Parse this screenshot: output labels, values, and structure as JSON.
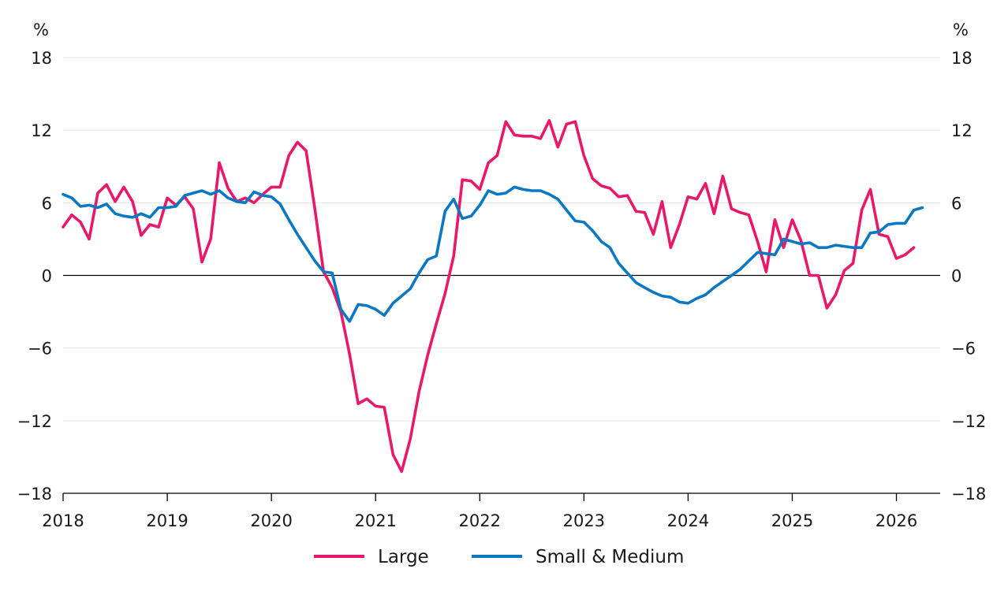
{
  "chart_data": {
    "type": "line",
    "y_unit_left": "%",
    "y_unit_right": "%",
    "ylim": [
      -18,
      18
    ],
    "yticks": [
      18,
      12,
      6,
      0,
      -6,
      -12,
      -18
    ],
    "ytick_labels": [
      "18",
      "12",
      "6",
      "0",
      "−6",
      "−12",
      "−18"
    ],
    "xlim": [
      2018,
      2026.42
    ],
    "xticks": [
      2018,
      2019,
      2020,
      2021,
      2022,
      2023,
      2024,
      2025,
      2026
    ],
    "xtick_labels": [
      "2018",
      "2019",
      "2020",
      "2021",
      "2022",
      "2023",
      "2024",
      "2025",
      "2026"
    ],
    "grid": true,
    "legend_position": "bottom-center",
    "series": [
      {
        "name": "Large",
        "color": "#e8196b",
        "x": [
          2018.0,
          2018.083,
          2018.167,
          2018.25,
          2018.333,
          2018.417,
          2018.5,
          2018.583,
          2018.667,
          2018.75,
          2018.833,
          2018.917,
          2019.0,
          2019.083,
          2019.167,
          2019.25,
          2019.333,
          2019.417,
          2019.5,
          2019.583,
          2019.667,
          2019.75,
          2019.833,
          2019.917,
          2020.0,
          2020.083,
          2020.167,
          2020.25,
          2020.333,
          2020.417,
          2020.5,
          2020.583,
          2020.667,
          2020.75,
          2020.833,
          2020.917,
          2021.0,
          2021.083,
          2021.167,
          2021.25,
          2021.333,
          2021.417,
          2021.5,
          2021.583,
          2021.667,
          2021.75,
          2021.833,
          2021.917,
          2022.0,
          2022.083,
          2022.167,
          2022.25,
          2022.333,
          2022.417,
          2022.5,
          2022.583,
          2022.667,
          2022.75,
          2022.833,
          2022.917,
          2023.0,
          2023.083,
          2023.167,
          2023.25,
          2023.333,
          2023.417,
          2023.5,
          2023.583,
          2023.667,
          2023.75,
          2023.833,
          2023.917,
          2024.0,
          2024.083,
          2024.167,
          2024.25,
          2024.333,
          2024.417,
          2024.5,
          2024.583,
          2024.667,
          2024.75,
          2024.833,
          2024.917,
          2025.0,
          2025.083,
          2025.167,
          2025.25,
          2025.333,
          2025.417,
          2025.5,
          2025.583,
          2025.667,
          2025.75,
          2025.833,
          2025.917,
          2026.0,
          2026.083,
          2026.167
        ],
        "values": [
          4.0,
          5.0,
          4.4,
          3.0,
          6.8,
          7.5,
          6.1,
          7.3,
          6.1,
          3.3,
          4.2,
          4.0,
          6.4,
          5.8,
          6.5,
          5.5,
          1.1,
          3.0,
          9.3,
          7.2,
          6.1,
          6.4,
          6.0,
          6.7,
          7.3,
          7.3,
          9.9,
          11.0,
          10.3,
          5.5,
          0.3,
          -1.0,
          -3.0,
          -6.5,
          -10.6,
          -10.2,
          -10.8,
          -10.9,
          -14.8,
          -16.2,
          -13.5,
          -9.6,
          -6.6,
          -4.0,
          -1.5,
          1.6,
          7.9,
          7.8,
          7.1,
          9.3,
          9.9,
          12.7,
          11.6,
          11.5,
          11.5,
          11.3,
          12.8,
          10.6,
          12.5,
          12.7,
          9.9,
          8.0,
          7.4,
          7.2,
          6.5,
          6.6,
          5.3,
          5.2,
          3.4,
          6.1,
          2.3,
          4.2,
          6.5,
          6.3,
          7.6,
          5.1,
          8.2,
          5.5,
          5.2,
          5.0,
          2.8,
          0.3,
          4.6,
          2.3,
          4.6,
          2.9,
          0.0,
          0.0,
          -2.7,
          -1.6,
          0.4,
          1.0,
          5.4,
          7.1,
          3.4,
          3.2,
          1.4,
          1.7,
          2.3
        ]
      },
      {
        "name": "Small & Medium",
        "color": "#0a78c2",
        "x": [
          2018.0,
          2018.083,
          2018.167,
          2018.25,
          2018.333,
          2018.417,
          2018.5,
          2018.583,
          2018.667,
          2018.75,
          2018.833,
          2018.917,
          2019.0,
          2019.083,
          2019.167,
          2019.25,
          2019.333,
          2019.417,
          2019.5,
          2019.583,
          2019.667,
          2019.75,
          2019.833,
          2019.917,
          2020.0,
          2020.083,
          2020.167,
          2020.25,
          2020.333,
          2020.417,
          2020.5,
          2020.583,
          2020.667,
          2020.75,
          2020.833,
          2020.917,
          2021.0,
          2021.083,
          2021.167,
          2021.25,
          2021.333,
          2021.417,
          2021.5,
          2021.583,
          2021.667,
          2021.75,
          2021.833,
          2021.917,
          2022.0,
          2022.083,
          2022.167,
          2022.25,
          2022.333,
          2022.417,
          2022.5,
          2022.583,
          2022.667,
          2022.75,
          2022.833,
          2022.917,
          2023.0,
          2023.083,
          2023.167,
          2023.25,
          2023.333,
          2023.417,
          2023.5,
          2023.583,
          2023.667,
          2023.75,
          2023.833,
          2023.917,
          2024.0,
          2024.083,
          2024.167,
          2024.25,
          2024.333,
          2024.417,
          2024.5,
          2024.583,
          2024.667,
          2024.75,
          2024.833,
          2024.917,
          2025.0,
          2025.083,
          2025.167,
          2025.25,
          2025.333,
          2025.417,
          2025.5,
          2025.583,
          2025.667,
          2025.75,
          2025.833,
          2025.917,
          2026.0,
          2026.083,
          2026.167,
          2026.25
        ],
        "values": [
          6.7,
          6.4,
          5.7,
          5.8,
          5.6,
          5.9,
          5.1,
          4.9,
          4.8,
          5.1,
          4.8,
          5.6,
          5.6,
          5.7,
          6.6,
          6.8,
          7.0,
          6.7,
          7.0,
          6.4,
          6.1,
          6.0,
          6.9,
          6.6,
          6.5,
          5.9,
          4.6,
          3.4,
          2.3,
          1.2,
          0.3,
          0.2,
          -2.8,
          -3.8,
          -2.4,
          -2.5,
          -2.8,
          -3.3,
          -2.3,
          -1.7,
          -1.1,
          0.2,
          1.3,
          1.6,
          5.3,
          6.3,
          4.7,
          4.9,
          5.8,
          7.0,
          6.7,
          6.8,
          7.3,
          7.1,
          7.0,
          7.0,
          6.7,
          6.3,
          5.4,
          4.5,
          4.4,
          3.7,
          2.8,
          2.3,
          1.0,
          0.2,
          -0.6,
          -1.0,
          -1.4,
          -1.7,
          -1.8,
          -2.2,
          -2.3,
          -1.9,
          -1.6,
          -1.0,
          -0.5,
          0.0,
          0.5,
          1.2,
          1.9,
          1.8,
          1.7,
          3.0,
          2.8,
          2.6,
          2.7,
          2.3,
          2.3,
          2.5,
          2.4,
          2.3,
          2.3,
          3.5,
          3.6,
          4.2,
          4.3,
          4.3,
          5.4,
          5.6
        ]
      }
    ]
  }
}
